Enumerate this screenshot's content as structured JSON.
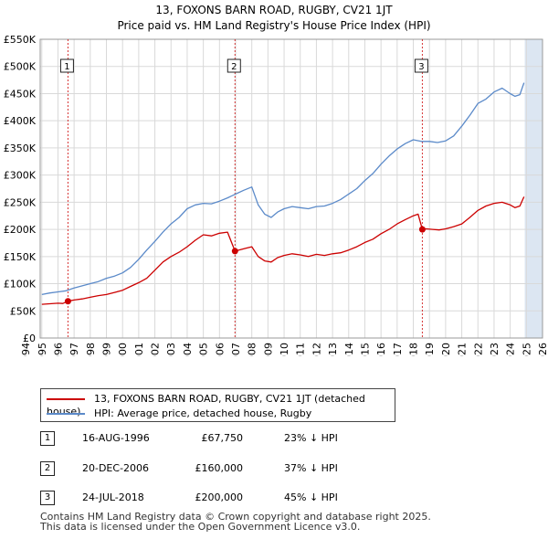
{
  "title": {
    "line1": "13, FOXONS BARN ROAD, RUGBY, CV21 1JT",
    "line2": "Price paid vs. HM Land Registry's House Price Index (HPI)"
  },
  "colors": {
    "property": "#cc0000",
    "hpi": "#5b8ac9",
    "shade": "#dce6f2",
    "vline": "#cc0000"
  },
  "chart_data": {
    "type": "line",
    "xlabel": "",
    "ylabel": "",
    "xlim": [
      1994.9,
      2026.0
    ],
    "ylim": [
      0,
      550000
    ],
    "x_ticks": [
      1994,
      1995,
      1996,
      1997,
      1998,
      1999,
      2000,
      2001,
      2002,
      2003,
      2004,
      2005,
      2006,
      2007,
      2008,
      2009,
      2010,
      2011,
      2012,
      2013,
      2014,
      2015,
      2016,
      2017,
      2018,
      2019,
      2020,
      2021,
      2022,
      2023,
      2024,
      2025,
      2026
    ],
    "y_ticks": [
      0,
      50000,
      100000,
      150000,
      200000,
      250000,
      300000,
      350000,
      400000,
      450000,
      500000,
      550000
    ],
    "y_tick_labels": [
      "£0",
      "£50K",
      "£100K",
      "£150K",
      "£200K",
      "£250K",
      "£300K",
      "£350K",
      "£400K",
      "£450K",
      "£500K",
      "£550K"
    ],
    "shaded_ranges": [
      [
        2024.9,
        2026.0
      ]
    ],
    "grid": true,
    "series": [
      {
        "name": "13, FOXONS BARN ROAD, RUGBY, CV21 1JT (detached house)",
        "x": [
          1995.0,
          1995.5,
          1996.0,
          1996.3,
          1996.62,
          1997.0,
          1997.5,
          1998.0,
          1998.5,
          1999.0,
          1999.5,
          2000.0,
          2000.5,
          2001.0,
          2001.5,
          2002.0,
          2002.5,
          2003.0,
          2003.5,
          2004.0,
          2004.5,
          2005.0,
          2005.5,
          2006.0,
          2006.5,
          2006.96,
          2007.2,
          2007.6,
          2008.0,
          2008.4,
          2008.8,
          2009.2,
          2009.6,
          2010.0,
          2010.5,
          2011.0,
          2011.5,
          2012.0,
          2012.5,
          2013.0,
          2013.5,
          2014.0,
          2014.5,
          2015.0,
          2015.5,
          2016.0,
          2016.5,
          2017.0,
          2017.5,
          2018.0,
          2018.3,
          2018.56,
          2018.8,
          2019.2,
          2019.6,
          2020.0,
          2020.5,
          2021.0,
          2021.5,
          2022.0,
          2022.5,
          2023.0,
          2023.5,
          2024.0,
          2024.3,
          2024.6,
          2024.85
        ],
        "values": [
          62000,
          63000,
          64000,
          63500,
          67750,
          70000,
          72000,
          75000,
          78000,
          80000,
          84000,
          88000,
          95000,
          102000,
          110000,
          125000,
          140000,
          150000,
          158000,
          168000,
          180000,
          190000,
          188000,
          193000,
          195000,
          160000,
          162000,
          165000,
          168000,
          150000,
          142000,
          140000,
          148000,
          152000,
          155000,
          153000,
          150000,
          154000,
          152000,
          155000,
          157000,
          162000,
          168000,
          176000,
          182000,
          192000,
          200000,
          210000,
          218000,
          225000,
          228000,
          200000,
          201000,
          200000,
          199000,
          201000,
          205000,
          210000,
          222000,
          235000,
          243000,
          248000,
          250000,
          245000,
          240000,
          243000,
          260000
        ]
      },
      {
        "name": "HPI: Average price, detached house, Rugby",
        "x": [
          1995.0,
          1995.5,
          1996.0,
          1996.5,
          1997.0,
          1997.5,
          1998.0,
          1998.5,
          1999.0,
          1999.5,
          2000.0,
          2000.5,
          2001.0,
          2001.5,
          2002.0,
          2002.5,
          2003.0,
          2003.5,
          2004.0,
          2004.5,
          2005.0,
          2005.5,
          2006.0,
          2006.5,
          2007.0,
          2007.5,
          2008.0,
          2008.4,
          2008.8,
          2009.2,
          2009.6,
          2010.0,
          2010.5,
          2011.0,
          2011.5,
          2012.0,
          2012.5,
          2013.0,
          2013.5,
          2014.0,
          2014.5,
          2015.0,
          2015.5,
          2016.0,
          2016.5,
          2017.0,
          2017.5,
          2018.0,
          2018.5,
          2019.0,
          2019.5,
          2020.0,
          2020.5,
          2021.0,
          2021.5,
          2022.0,
          2022.5,
          2023.0,
          2023.5,
          2024.0,
          2024.3,
          2024.6,
          2024.85
        ],
        "values": [
          80000,
          83000,
          85000,
          87000,
          92000,
          96000,
          100000,
          104000,
          110000,
          114000,
          120000,
          130000,
          145000,
          162000,
          178000,
          195000,
          210000,
          222000,
          238000,
          245000,
          248000,
          247000,
          252000,
          258000,
          265000,
          272000,
          278000,
          245000,
          228000,
          222000,
          232000,
          238000,
          242000,
          240000,
          238000,
          242000,
          243000,
          248000,
          255000,
          265000,
          275000,
          290000,
          303000,
          320000,
          335000,
          348000,
          358000,
          365000,
          362000,
          362000,
          360000,
          363000,
          372000,
          390000,
          410000,
          432000,
          440000,
          453000,
          460000,
          450000,
          445000,
          448000,
          470000
        ]
      }
    ],
    "sales": [
      {
        "label": "1",
        "x": 1996.62,
        "value": 67750
      },
      {
        "label": "2",
        "x": 2006.96,
        "value": 160000
      },
      {
        "label": "3",
        "x": 2018.56,
        "value": 200000
      }
    ]
  },
  "legend": {
    "property_label": "13, FOXONS BARN ROAD, RUGBY, CV21 1JT (detached house)",
    "hpi_label": "HPI: Average price, detached house, Rugby"
  },
  "sales_table": [
    {
      "num": "1",
      "date": "16-AUG-1996",
      "price": "£67,750",
      "hpi": "23% ↓ HPI"
    },
    {
      "num": "2",
      "date": "20-DEC-2006",
      "price": "£160,000",
      "hpi": "37% ↓ HPI"
    },
    {
      "num": "3",
      "date": "24-JUL-2018",
      "price": "£200,000",
      "hpi": "45% ↓ HPI"
    }
  ],
  "footer": {
    "line1": "Contains HM Land Registry data © Crown copyright and database right 2025.",
    "line2": "This data is licensed under the Open Government Licence v3.0."
  }
}
